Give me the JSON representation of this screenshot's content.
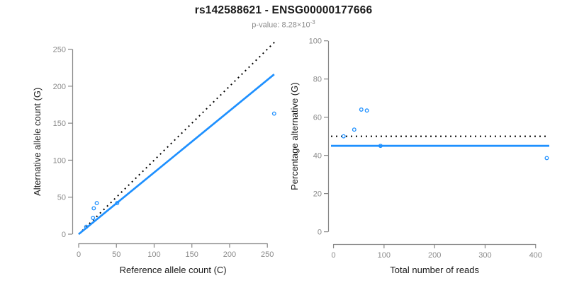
{
  "title": "rs142588621 - ENSG00000177666",
  "subtitle": {
    "text": "p-value: 8.28×10",
    "exponent": "-3"
  },
  "colors": {
    "accent_blue": "#1E90FF",
    "axis_line": "#878787",
    "tick_label": "#8a8a8a",
    "axis_title": "#1a1a1a",
    "subtitle_gray": "#8c8c8c",
    "background": "#ffffff"
  },
  "chart_data": [
    {
      "type": "scatter",
      "name": "allele-counts-panel",
      "xlabel": "Reference allele count (C)",
      "ylabel": "Alternative allele count (G)",
      "xticks": [
        0,
        50,
        100,
        150,
        200,
        250
      ],
      "yticks": [
        0,
        50,
        100,
        150,
        200,
        250
      ],
      "xlim": [
        0,
        262
      ],
      "ylim": [
        0,
        262
      ],
      "grid": false,
      "legend": "none",
      "point_color": "#1E90FF",
      "points": [
        [
          10,
          10
        ],
        [
          19,
          22
        ],
        [
          20,
          35
        ],
        [
          24,
          42
        ],
        [
          51,
          42
        ],
        [
          259,
          163
        ]
      ],
      "lines": [
        {
          "name": "identity-line",
          "style": "dotted",
          "color": "#000000",
          "from": [
            0,
            0
          ],
          "to": [
            261,
            261
          ]
        },
        {
          "name": "fit-line",
          "style": "solid",
          "color": "#1E90FF",
          "from": [
            0,
            0
          ],
          "to": [
            259,
            216
          ]
        }
      ]
    },
    {
      "type": "scatter",
      "name": "percentage-panel",
      "xlabel": "Total number of reads",
      "ylabel": "Percentage alternative (G)",
      "xticks": [
        0,
        100,
        200,
        300,
        400
      ],
      "yticks": [
        0,
        20,
        40,
        60,
        80,
        100
      ],
      "xlim": [
        -5,
        427
      ],
      "ylim": [
        -2,
        101
      ],
      "grid": false,
      "legend": "none",
      "point_color": "#1E90FF",
      "points": [
        [
          20,
          50
        ],
        [
          41,
          53.5
        ],
        [
          55,
          64
        ],
        [
          66,
          63.5
        ],
        [
          93,
          45
        ],
        [
          422,
          38.6
        ]
      ],
      "lines": [
        {
          "name": "expected-line",
          "style": "dotted",
          "color": "#000000",
          "from": [
            -5,
            50
          ],
          "to": [
            427,
            50
          ]
        },
        {
          "name": "fit-line",
          "style": "solid",
          "color": "#1E90FF",
          "from": [
            -5,
            45
          ],
          "to": [
            427,
            45
          ]
        }
      ]
    }
  ]
}
